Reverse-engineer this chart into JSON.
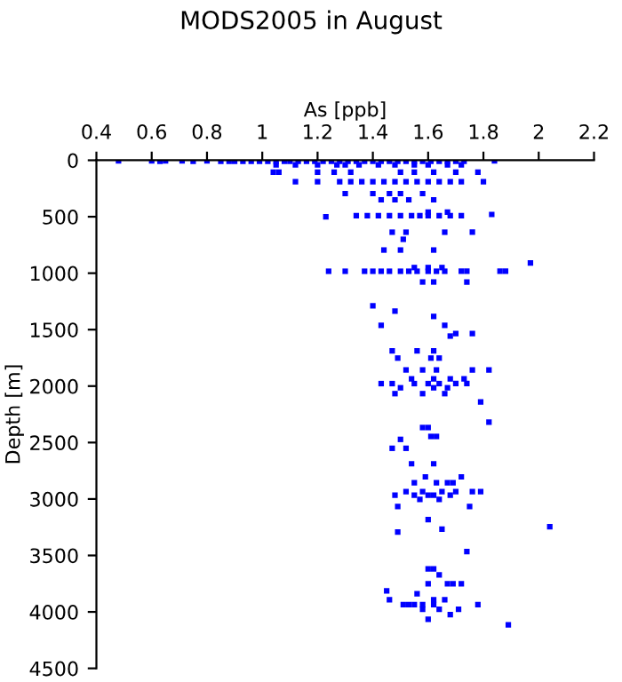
{
  "chart_data": {
    "type": "scatter",
    "title": "MODS2005 in August",
    "xlabel": "As [ppb]",
    "ylabel": "Depth [m]",
    "xlim": [
      0.4,
      2.2
    ],
    "xticks": [
      0.4,
      0.6,
      0.8,
      1,
      1.2,
      1.4,
      1.6,
      1.8,
      2,
      2.2
    ],
    "ylim": [
      4500,
      0
    ],
    "yticks": [
      0,
      500,
      1000,
      1500,
      2000,
      2500,
      3000,
      3500,
      4000,
      4500
    ],
    "marker": "square",
    "grid": false,
    "legend": false,
    "series": [
      {
        "color": "#0000ff",
        "x": [
          0.48,
          0.6,
          0.63,
          0.65,
          0.71,
          0.75,
          0.8,
          0.85,
          0.88,
          0.9,
          0.93,
          0.96,
          0.99,
          1.02,
          1.05,
          1.08,
          1.1,
          1.13,
          1.16,
          1.19,
          1.22,
          1.25,
          1.28,
          1.31,
          1.34,
          1.37,
          1.4,
          1.43,
          1.46,
          1.49,
          1.52,
          1.55,
          1.58,
          1.61,
          1.64,
          1.67,
          1.7,
          1.73,
          1.84,
          1.05,
          1.12,
          1.2,
          1.27,
          1.3,
          1.35,
          1.42,
          1.48,
          1.55,
          1.6,
          1.67,
          1.72,
          1.04,
          1.06,
          1.2,
          1.26,
          1.32,
          1.5,
          1.55,
          1.62,
          1.7,
          1.78,
          1.12,
          1.2,
          1.28,
          1.32,
          1.36,
          1.4,
          1.44,
          1.48,
          1.52,
          1.56,
          1.6,
          1.64,
          1.68,
          1.72,
          1.8,
          1.3,
          1.4,
          1.46,
          1.5,
          1.58,
          1.43,
          1.48,
          1.53,
          1.62,
          1.23,
          1.34,
          1.38,
          1.42,
          1.46,
          1.5,
          1.54,
          1.57,
          1.6,
          1.64,
          1.68,
          1.72,
          1.83,
          1.6,
          1.67,
          1.47,
          1.52,
          1.66,
          1.76,
          1.51,
          1.44,
          1.5,
          1.62,
          1.24,
          1.3,
          1.37,
          1.4,
          1.43,
          1.46,
          1.5,
          1.53,
          1.56,
          1.6,
          1.63,
          1.66,
          1.72,
          1.74,
          1.86,
          1.88,
          1.55,
          1.6,
          1.65,
          1.97,
          1.58,
          1.62,
          1.74,
          1.4,
          1.48,
          1.62,
          1.43,
          1.66,
          1.7,
          1.76,
          1.68,
          1.47,
          1.56,
          1.62,
          1.49,
          1.61,
          1.64,
          1.52,
          1.58,
          1.63,
          1.76,
          1.82,
          1.54,
          1.62,
          1.68,
          1.73,
          1.43,
          1.47,
          1.55,
          1.6,
          1.64,
          1.7,
          1.74,
          1.5,
          1.62,
          1.67,
          1.48,
          1.58,
          1.66,
          1.79,
          1.82,
          1.58,
          1.6,
          1.61,
          1.63,
          1.5,
          1.47,
          1.52,
          1.54,
          1.62,
          1.59,
          1.72,
          1.55,
          1.63,
          1.67,
          1.69,
          1.52,
          1.58,
          1.65,
          1.7,
          1.76,
          1.79,
          1.48,
          1.55,
          1.6,
          1.62,
          1.68,
          1.57,
          1.64,
          1.49,
          1.75,
          1.6,
          2.04,
          1.65,
          1.49,
          1.74,
          1.6,
          1.62,
          1.64,
          1.6,
          1.67,
          1.69,
          1.72,
          1.45,
          1.56,
          1.46,
          1.62,
          1.66,
          1.51,
          1.53,
          1.55,
          1.58,
          1.62,
          1.78,
          1.58,
          1.64,
          1.71,
          1.68,
          1.6,
          1.89
        ],
        "values": [
          5,
          5,
          10,
          5,
          5,
          10,
          5,
          10,
          10,
          10,
          10,
          10,
          10,
          10,
          10,
          10,
          10,
          10,
          10,
          10,
          10,
          10,
          10,
          10,
          10,
          10,
          10,
          10,
          10,
          10,
          10,
          10,
          10,
          10,
          10,
          10,
          10,
          10,
          5,
          40,
          40,
          40,
          40,
          40,
          40,
          40,
          40,
          40,
          40,
          40,
          40,
          105,
          105,
          105,
          105,
          105,
          105,
          105,
          105,
          105,
          105,
          190,
          190,
          190,
          190,
          190,
          190,
          190,
          190,
          190,
          190,
          190,
          190,
          190,
          190,
          190,
          295,
          295,
          295,
          295,
          295,
          350,
          350,
          350,
          350,
          500,
          490,
          490,
          490,
          490,
          490,
          490,
          490,
          490,
          490,
          490,
          490,
          480,
          460,
          460,
          637,
          637,
          637,
          637,
          700,
          795,
          795,
          795,
          983,
          983,
          983,
          983,
          983,
          983,
          983,
          983,
          983,
          983,
          983,
          983,
          983,
          983,
          983,
          983,
          950,
          950,
          950,
          910,
          1078,
          1078,
          1078,
          1289,
          1336,
          1383,
          1462,
          1462,
          1535,
          1535,
          1557,
          1688,
          1688,
          1688,
          1752,
          1752,
          1752,
          1857,
          1857,
          1857,
          1857,
          1857,
          1936,
          1936,
          1936,
          1936,
          1978,
          1978,
          1978,
          1978,
          1978,
          1978,
          1978,
          2015,
          2015,
          2015,
          2067,
          2067,
          2067,
          2141,
          2320,
          2367,
          2367,
          2446,
          2446,
          2472,
          2551,
          2551,
          2688,
          2688,
          2804,
          2804,
          2856,
          2856,
          2856,
          2856,
          2935,
          2935,
          2935,
          2935,
          2935,
          2935,
          2967,
          2967,
          2967,
          2967,
          2967,
          3004,
          3004,
          3067,
          3067,
          3182,
          3246,
          3267,
          3293,
          3466,
          3619,
          3619,
          3672,
          3751,
          3751,
          3751,
          3751,
          3814,
          3840,
          3893,
          3893,
          3893,
          3935,
          3935,
          3935,
          3935,
          3935,
          3935,
          3977,
          3977,
          3977,
          4024,
          4066,
          4114
        ]
      }
    ]
  }
}
